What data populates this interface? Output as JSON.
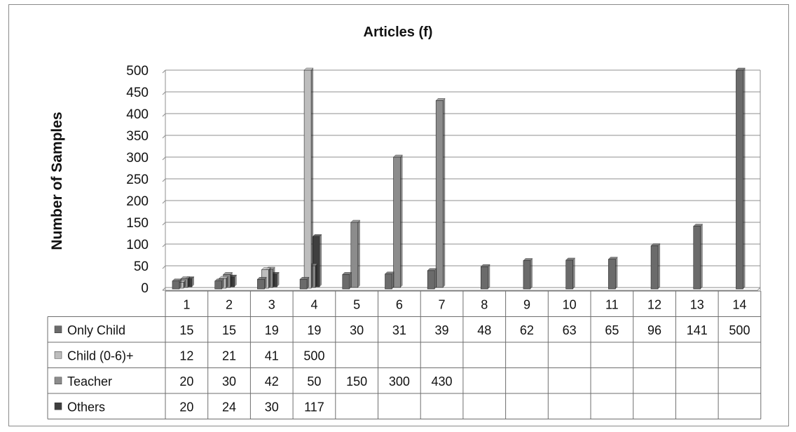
{
  "chart_data": {
    "type": "bar",
    "title": "Articles (f)",
    "xlabel": "",
    "ylabel": "Number of Samples",
    "ylim": [
      0,
      500
    ],
    "yticks": [
      0,
      50,
      100,
      150,
      200,
      250,
      300,
      350,
      400,
      450,
      500
    ],
    "categories": [
      "1",
      "2",
      "3",
      "4",
      "5",
      "6",
      "7",
      "8",
      "9",
      "10",
      "11",
      "12",
      "13",
      "14"
    ],
    "legend_position": "data-table",
    "grid": true,
    "series": [
      {
        "name": "Only Child",
        "color": "#6b6b6b",
        "values": [
          15,
          15,
          19,
          19,
          30,
          31,
          39,
          48,
          62,
          63,
          65,
          96,
          141,
          500
        ]
      },
      {
        "name": "Child (0-6)+",
        "color": "#bdbdbd",
        "values": [
          12,
          21,
          41,
          500,
          null,
          null,
          null,
          null,
          null,
          null,
          null,
          null,
          null,
          null
        ]
      },
      {
        "name": "Teacher",
        "color": "#8c8c8c",
        "values": [
          20,
          30,
          42,
          50,
          150,
          300,
          430,
          null,
          null,
          null,
          null,
          null,
          null,
          null
        ]
      },
      {
        "name": "Others",
        "color": "#3f3f3f",
        "values": [
          20,
          24,
          30,
          117,
          null,
          null,
          null,
          null,
          null,
          null,
          null,
          null,
          null,
          null
        ]
      }
    ]
  }
}
